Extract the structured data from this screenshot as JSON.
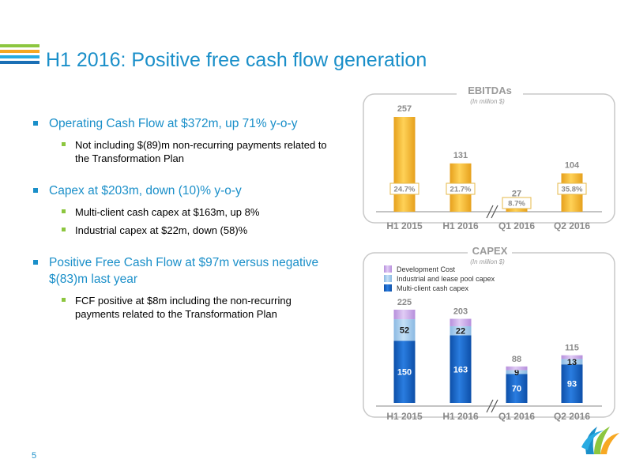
{
  "title": "H1 2016: Positive free cash flow generation",
  "page_number": "5",
  "bullets": [
    {
      "text": "Operating Cash Flow at $372m, up 71% y-o-y",
      "sub": [
        "Not including $(89)m non-recurring payments related to the Transformation Plan"
      ]
    },
    {
      "text": "Capex at $203m, down (10)% y-o-y",
      "sub": [
        "Multi-client cash capex at $163m, up 8%",
        "Industrial capex at $22m, down (58)%"
      ]
    },
    {
      "text": "Positive Free Cash Flow at $97m versus negative $(83)m last year",
      "sub": [
        "FCF positive at $8m including the non-recurring payments related to the Transformation Plan"
      ]
    }
  ],
  "colors": {
    "title_blue": "#1a8fc9",
    "ebitda_bar": "#f5b82e",
    "multi_client": "#1565c0",
    "industrial": "#9ec9ec",
    "development": "#c8a6e6",
    "stripes": [
      "#8cc63f",
      "#f7a823",
      "#29abe2",
      "#1a6fb5"
    ]
  },
  "chart_data": [
    {
      "type": "bar",
      "title": "EBITDAs",
      "subtitle": "(In million $)",
      "categories": [
        "H1 2015",
        "H1 2016",
        "Q1 2016",
        "Q2 2016"
      ],
      "values": [
        257,
        131,
        27,
        104
      ],
      "margins": [
        "24.7%",
        "21.7%",
        "8.7%",
        "35.8%"
      ],
      "ylim": [
        0,
        257
      ],
      "grid": false,
      "legend": "none"
    },
    {
      "type": "bar",
      "stacked": true,
      "title": "CAPEX",
      "subtitle": "(In million $)",
      "categories": [
        "H1 2015",
        "H1 2016",
        "Q1 2016",
        "Q2 2016"
      ],
      "series": [
        {
          "name": "Multi-client cash capex",
          "values": [
            150,
            163,
            70,
            93
          ],
          "labels": [
            "150",
            "163",
            "70",
            "93"
          ]
        },
        {
          "name": "Industrial and lease pool capex",
          "values": [
            52,
            22,
            9,
            13
          ],
          "labels": [
            "52",
            "22",
            "9",
            "13"
          ]
        },
        {
          "name": "Development Cost",
          "values": [
            23,
            18,
            9,
            9
          ]
        }
      ],
      "totals": [
        225,
        203,
        88,
        115
      ],
      "ylim": [
        0,
        225
      ],
      "grid": false,
      "legend": "top-left"
    }
  ]
}
